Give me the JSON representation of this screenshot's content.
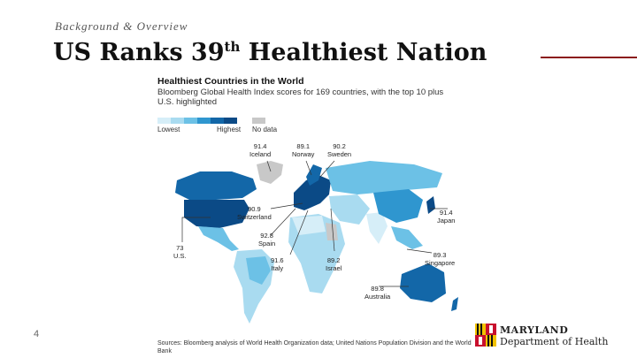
{
  "header": {
    "kicker": "Background & Overview",
    "title_main": "US Ranks 39",
    "title_sup": "th",
    "title_rest": " Healthiest Nation"
  },
  "page_number": "4",
  "figure": {
    "title": "Healthiest Countries in the World",
    "subtitle": "Bloomberg Global Health Index scores for 169 countries, with the top 10 plus U.S. highlighted",
    "legend": {
      "lowest": "Lowest",
      "highest": "Highest",
      "nodata": "No data"
    },
    "labels": [
      {
        "value": "91.4",
        "name": "Iceland"
      },
      {
        "value": "89.1",
        "name": "Norway"
      },
      {
        "value": "90.2",
        "name": "Sweden"
      },
      {
        "value": "90.9",
        "name": "Switzerland"
      },
      {
        "value": "92.8",
        "name": "Spain"
      },
      {
        "value": "91.6",
        "name": "Italy"
      },
      {
        "value": "89.2",
        "name": "Israel"
      },
      {
        "value": "73",
        "name": "U.S."
      },
      {
        "value": "91.4",
        "name": "Japan"
      },
      {
        "value": "89.3",
        "name": "Singapore"
      },
      {
        "value": "89.8",
        "name": "Australia"
      }
    ],
    "source": "Sources: Bloomberg analysis of World Health Organization data; United Nations Population Division and the World Bank"
  },
  "logo": {
    "line1": "MARYLAND",
    "line2": "Department of Health"
  },
  "colors": {
    "scale": [
      "#d6eef8",
      "#a9dbf0",
      "#6cc1e6",
      "#2f96cf",
      "#1367a8",
      "#0b4a86"
    ],
    "nodata": "#c8c8c8",
    "rule": "#8b1a1a"
  }
}
